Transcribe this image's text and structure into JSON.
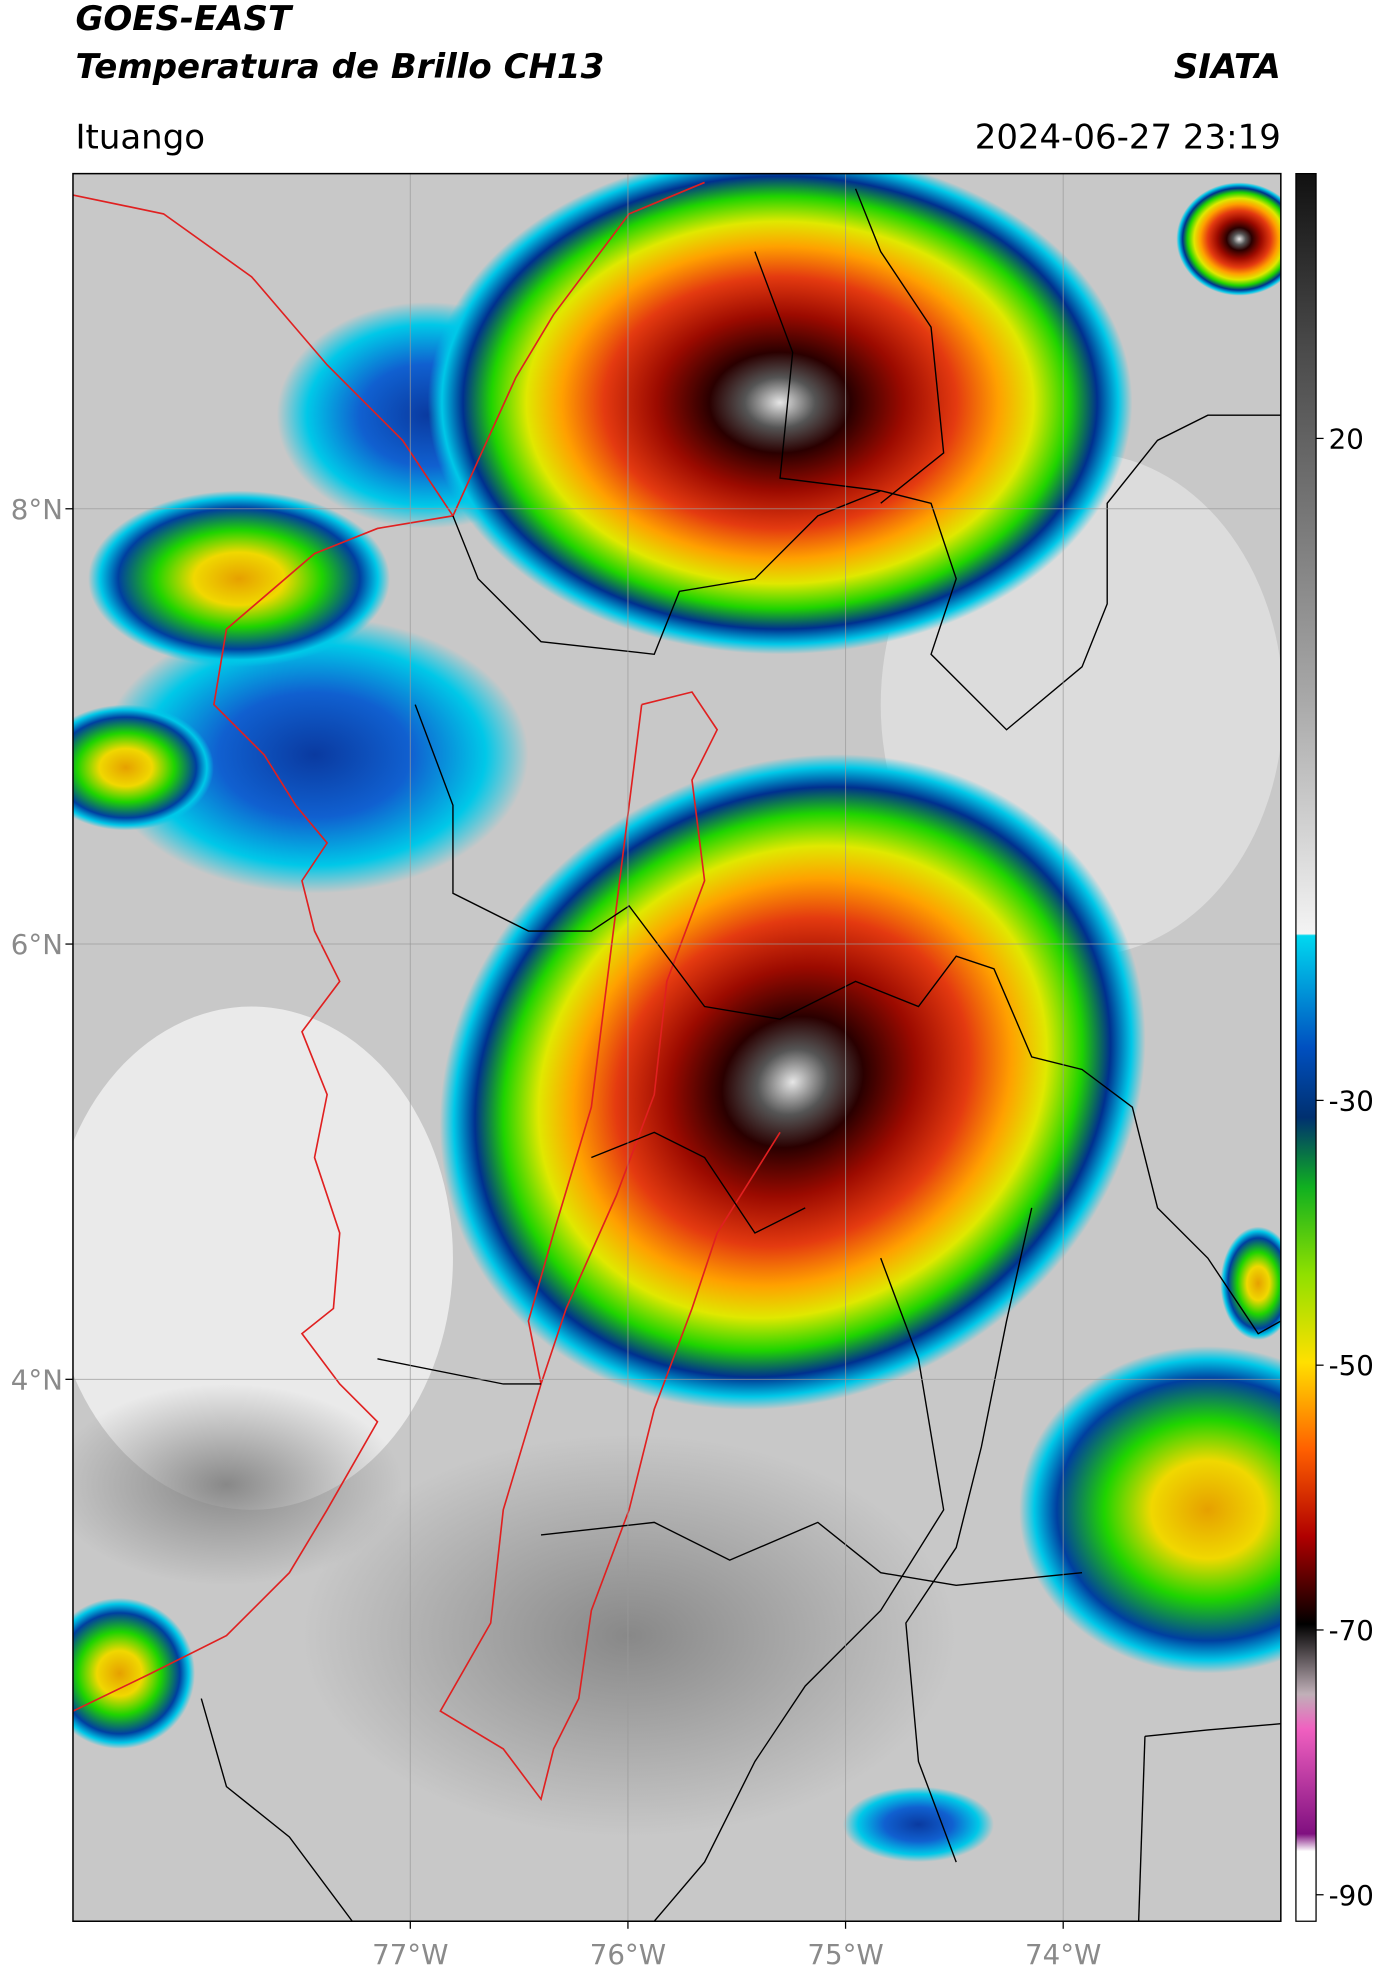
{
  "header": {
    "satellite": "GOES-EAST",
    "product": "Temperatura de Brillo CH13",
    "org": "SIATA",
    "location": "Ituango",
    "datetime": "2024-06-27 23:19"
  },
  "map": {
    "xlim": [
      -78.55,
      -73.0
    ],
    "ylim": [
      1.51,
      9.54
    ],
    "xticks": [
      {
        "value": -77,
        "label": "77°W"
      },
      {
        "value": -76,
        "label": "76°W"
      },
      {
        "value": -75,
        "label": "75°W"
      },
      {
        "value": -74,
        "label": "74°W"
      }
    ],
    "yticks": [
      {
        "value": 8,
        "label": "8°N"
      },
      {
        "value": 6,
        "label": "6°N"
      },
      {
        "value": 4,
        "label": "4°N"
      }
    ],
    "grid": true
  },
  "colorbar": {
    "lim": [
      -92,
      40
    ],
    "ticks": [
      20,
      -30,
      -50,
      -70,
      -90
    ]
  }
}
